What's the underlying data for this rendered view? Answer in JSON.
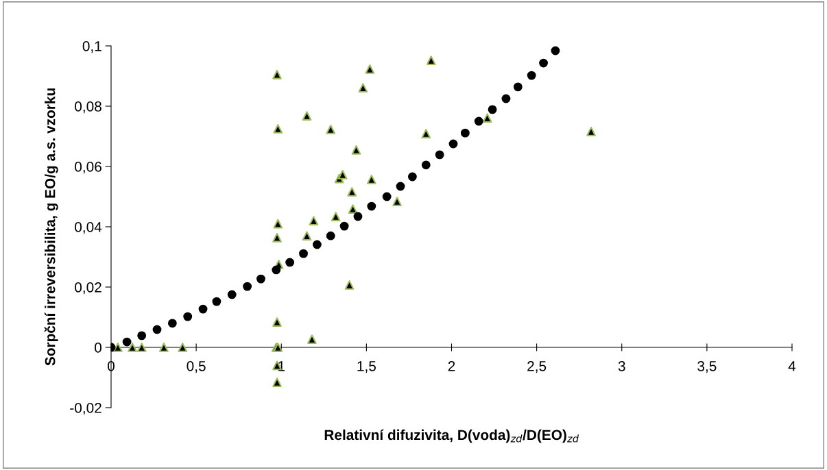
{
  "chart_data": {
    "type": "scatter",
    "xlabel": "Relativní difuzivita, D(voda)$_{zd}$/D(EO)$_{zd}$",
    "ylabel": "Sorpční irreversibilita, g EO/g a.s. vzorku",
    "xlim": [
      0,
      4
    ],
    "ylim": [
      -0.02,
      0.1
    ],
    "xticks": [
      0,
      {
        "value": 0.5,
        "label": "0,5"
      },
      1,
      {
        "value": 1.5,
        "label": "1,5"
      },
      2,
      {
        "value": 2.5,
        "label": "2,5"
      },
      3,
      {
        "value": 3.5,
        "label": "3,5"
      },
      4
    ],
    "yticks": [
      {
        "value": -0.02,
        "label": "-0,02"
      },
      0,
      {
        "value": 0.02,
        "label": "0,02"
      },
      {
        "value": 0.04,
        "label": "0,04"
      },
      {
        "value": 0.06,
        "label": "0,06"
      },
      {
        "value": 0.08,
        "label": "0,08"
      },
      {
        "value": 0.1,
        "label": "0,1"
      }
    ],
    "grid": false,
    "legend": false,
    "series": [
      {
        "color": "#000000",
        "marker": "triangle",
        "x": [
          0.01,
          0.04,
          0.125,
          0.18,
          0.31,
          0.42,
          0.975,
          0.98,
          0.98,
          0.975,
          0.985,
          0.975,
          0.97,
          0.98,
          0.975,
          0.975,
          1.15,
          1.15,
          1.19,
          1.18,
          1.29,
          1.32,
          1.34,
          1.36,
          1.4,
          1.415,
          1.42,
          1.44,
          1.48,
          1.52,
          1.53,
          1.68,
          1.85,
          1.88,
          2.21,
          2.82
        ],
        "values": [
          0,
          0,
          0,
          0,
          0,
          0,
          0.0905,
          0.0725,
          0.041,
          0.0364,
          0.0275,
          0.0084,
          0,
          0,
          -0.006,
          -0.0116,
          0.0768,
          0.037,
          0.042,
          0.0027,
          0.0723,
          0.0434,
          0.056,
          0.0573,
          0.0207,
          0.0516,
          0.0459,
          0.0655,
          0.0861,
          0.0923,
          0.0557,
          0.0484,
          0.0709,
          0.0952,
          0.0761,
          0.0716
        ]
      },
      {
        "color": "#000000",
        "marker": "circle",
        "x": [
          0,
          0.093,
          0.18,
          0.27,
          0.36,
          0.45,
          0.54,
          0.62,
          0.71,
          0.8,
          0.88,
          0.97,
          1.05,
          1.13,
          1.21,
          1.29,
          1.37,
          1.45,
          1.53,
          1.62,
          1.7,
          1.77,
          1.85,
          1.93,
          2.01,
          2.08,
          2.16,
          2.24,
          2.32,
          2.39,
          2.47,
          2.54,
          2.61
        ],
        "values": [
          0,
          0.0018,
          0.0039,
          0.0059,
          0.008,
          0.0102,
          0.0127,
          0.0152,
          0.0175,
          0.0202,
          0.0227,
          0.0257,
          0.0282,
          0.0311,
          0.0341,
          0.037,
          0.0402,
          0.0434,
          0.0468,
          0.05,
          0.0534,
          0.0566,
          0.0605,
          0.0639,
          0.0675,
          0.0711,
          0.075,
          0.0789,
          0.0825,
          0.0864,
          0.0902,
          0.0943,
          0.0984
        ]
      }
    ]
  }
}
